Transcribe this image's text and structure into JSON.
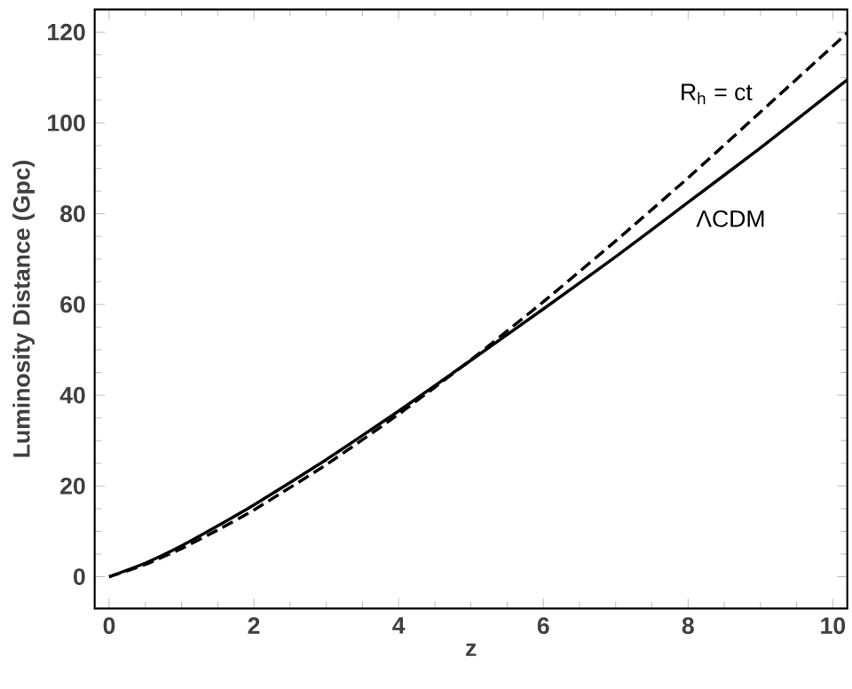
{
  "chart_data": {
    "type": "line",
    "xlabel": "z",
    "ylabel": "Luminosity Distance   (Gpc)",
    "xlim": [
      -0.2,
      10.2
    ],
    "ylim": [
      -7,
      125
    ],
    "xticks": [
      0,
      2,
      4,
      6,
      8,
      10
    ],
    "yticks": [
      0,
      20,
      40,
      60,
      80,
      100,
      120
    ],
    "legend": false,
    "grid": false,
    "series": [
      {
        "name": "R$_{h}$ = ct",
        "color": "#000000",
        "line_style": "dashed",
        "x": [
          0,
          0.5,
          1,
          1.5,
          2,
          3,
          4,
          5,
          6,
          7,
          8,
          9,
          10,
          10.2
        ],
        "values": [
          0,
          2.7,
          6.2,
          10.3,
          14.7,
          24.7,
          35.8,
          47.8,
          60.6,
          74.0,
          87.9,
          102.4,
          116.9,
          119.9
        ]
      },
      {
        "name": "ΛCDM",
        "color": "#000000",
        "line_style": "solid",
        "x": [
          0,
          0.5,
          1,
          1.5,
          2,
          3,
          4,
          5,
          6,
          7,
          8,
          9,
          10,
          10.2
        ],
        "values": [
          0,
          3.0,
          6.8,
          11.2,
          15.8,
          25.8,
          36.5,
          47.7,
          59.0,
          70.5,
          82.5,
          94.5,
          107.0,
          109.5
        ]
      }
    ]
  }
}
